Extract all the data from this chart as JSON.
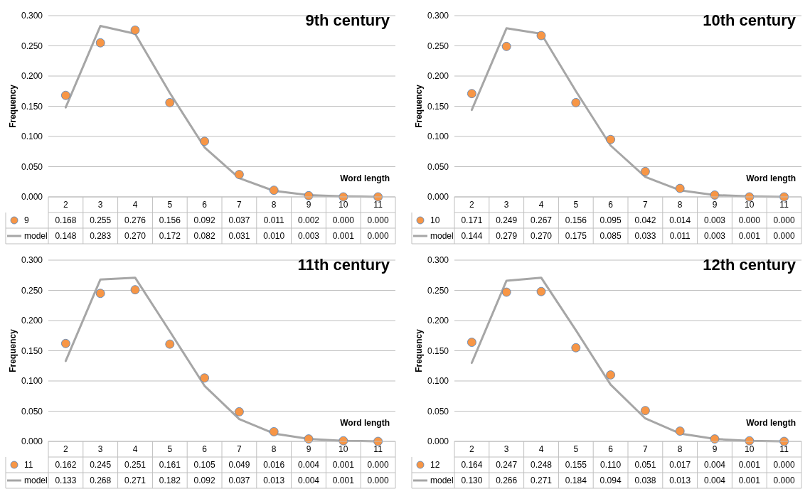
{
  "chart_data": [
    {
      "type": "scatter",
      "title": "9th century",
      "xlabel": "Word length",
      "ylabel": "Frequency",
      "categories": [
        "2",
        "3",
        "4",
        "5",
        "6",
        "7",
        "8",
        "9",
        "10",
        "11"
      ],
      "ylim": [
        0,
        0.3
      ],
      "yticks": [
        {
          "value": 0,
          "label": "0.000"
        },
        {
          "value": 0.05,
          "label": "0.050"
        },
        {
          "value": 0.1,
          "label": "0.100"
        },
        {
          "value": 0.15,
          "label": "0.150"
        },
        {
          "value": 0.2,
          "label": "0.200"
        },
        {
          "value": 0.25,
          "label": "0.250"
        },
        {
          "value": 0.3,
          "label": "0.300"
        }
      ],
      "grid": "y",
      "legend": "bottom",
      "series": [
        {
          "name": "9",
          "marker": "circle",
          "color": "#f79646",
          "values": [
            0.168,
            0.255,
            0.276,
            0.156,
            0.092,
            0.037,
            0.011,
            0.002,
            0.0,
            0.0
          ],
          "value_labels": [
            "0.168",
            "0.255",
            "0.276",
            "0.156",
            "0.092",
            "0.037",
            "0.011",
            "0.002",
            "0.000",
            "0.000"
          ]
        },
        {
          "name": "model",
          "type": "line",
          "marker": "none",
          "color": "#a6a6a6",
          "values": [
            0.148,
            0.283,
            0.27,
            0.172,
            0.082,
            0.031,
            0.01,
            0.003,
            0.001,
            0.0
          ],
          "value_labels": [
            "0.148",
            "0.283",
            "0.270",
            "0.172",
            "0.082",
            "0.031",
            "0.010",
            "0.003",
            "0.001",
            "0.000"
          ]
        }
      ]
    },
    {
      "type": "scatter",
      "title": "10th century",
      "xlabel": "Word length",
      "ylabel": "Frequency",
      "categories": [
        "2",
        "3",
        "4",
        "5",
        "6",
        "7",
        "8",
        "9",
        "10",
        "11"
      ],
      "ylim": [
        0,
        0.3
      ],
      "yticks": [
        {
          "value": 0,
          "label": "0.000"
        },
        {
          "value": 0.05,
          "label": "0.050"
        },
        {
          "value": 0.1,
          "label": "0.100"
        },
        {
          "value": 0.15,
          "label": "0.150"
        },
        {
          "value": 0.2,
          "label": "0.200"
        },
        {
          "value": 0.25,
          "label": "0.250"
        },
        {
          "value": 0.3,
          "label": "0.300"
        }
      ],
      "grid": "y",
      "legend": "bottom",
      "series": [
        {
          "name": "10",
          "marker": "circle",
          "color": "#f79646",
          "values": [
            0.171,
            0.249,
            0.267,
            0.156,
            0.095,
            0.042,
            0.014,
            0.003,
            0.0,
            0.0
          ],
          "value_labels": [
            "0.171",
            "0.249",
            "0.267",
            "0.156",
            "0.095",
            "0.042",
            "0.014",
            "0.003",
            "0.000",
            "0.000"
          ]
        },
        {
          "name": "model",
          "type": "line",
          "marker": "none",
          "color": "#a6a6a6",
          "values": [
            0.144,
            0.279,
            0.27,
            0.175,
            0.085,
            0.033,
            0.011,
            0.003,
            0.001,
            0.0
          ],
          "value_labels": [
            "0.144",
            "0.279",
            "0.270",
            "0.175",
            "0.085",
            "0.033",
            "0.011",
            "0.003",
            "0.001",
            "0.000"
          ]
        }
      ]
    },
    {
      "type": "scatter",
      "title": "11th century",
      "xlabel": "Word length",
      "ylabel": "Frequency",
      "categories": [
        "2",
        "3",
        "4",
        "5",
        "6",
        "7",
        "8",
        "9",
        "10",
        "11"
      ],
      "ylim": [
        0,
        0.3
      ],
      "yticks": [
        {
          "value": 0,
          "label": "0.000"
        },
        {
          "value": 0.05,
          "label": "0.050"
        },
        {
          "value": 0.1,
          "label": "0.100"
        },
        {
          "value": 0.15,
          "label": "0.150"
        },
        {
          "value": 0.2,
          "label": "0.200"
        },
        {
          "value": 0.25,
          "label": "0.250"
        },
        {
          "value": 0.3,
          "label": "0.300"
        }
      ],
      "grid": "y",
      "legend": "bottom",
      "series": [
        {
          "name": "11",
          "marker": "circle",
          "color": "#f79646",
          "values": [
            0.162,
            0.245,
            0.251,
            0.161,
            0.105,
            0.049,
            0.016,
            0.004,
            0.001,
            0.0
          ],
          "value_labels": [
            "0.162",
            "0.245",
            "0.251",
            "0.161",
            "0.105",
            "0.049",
            "0.016",
            "0.004",
            "0.001",
            "0.000"
          ]
        },
        {
          "name": "model",
          "type": "line",
          "marker": "none",
          "color": "#a6a6a6",
          "values": [
            0.133,
            0.268,
            0.271,
            0.182,
            0.092,
            0.037,
            0.013,
            0.004,
            0.001,
            0.0
          ],
          "value_labels": [
            "0.133",
            "0.268",
            "0.271",
            "0.182",
            "0.092",
            "0.037",
            "0.013",
            "0.004",
            "0.001",
            "0.000"
          ]
        }
      ]
    },
    {
      "type": "scatter",
      "title": "12th century",
      "xlabel": "Word length",
      "ylabel": "Frequency",
      "categories": [
        "2",
        "3",
        "4",
        "5",
        "6",
        "7",
        "8",
        "9",
        "10",
        "11"
      ],
      "ylim": [
        0,
        0.3
      ],
      "yticks": [
        {
          "value": 0,
          "label": "0.000"
        },
        {
          "value": 0.05,
          "label": "0.050"
        },
        {
          "value": 0.1,
          "label": "0.100"
        },
        {
          "value": 0.15,
          "label": "0.150"
        },
        {
          "value": 0.2,
          "label": "0.200"
        },
        {
          "value": 0.25,
          "label": "0.250"
        },
        {
          "value": 0.3,
          "label": "0.300"
        }
      ],
      "grid": "y",
      "legend": "bottom",
      "series": [
        {
          "name": "12",
          "marker": "circle",
          "color": "#f79646",
          "values": [
            0.164,
            0.247,
            0.248,
            0.155,
            0.11,
            0.051,
            0.017,
            0.004,
            0.001,
            0.0
          ],
          "value_labels": [
            "0.164",
            "0.247",
            "0.248",
            "0.155",
            "0.110",
            "0.051",
            "0.017",
            "0.004",
            "0.001",
            "0.000"
          ]
        },
        {
          "name": "model",
          "type": "line",
          "marker": "none",
          "color": "#a6a6a6",
          "values": [
            0.13,
            0.266,
            0.271,
            0.184,
            0.094,
            0.038,
            0.013,
            0.004,
            0.001,
            0.0
          ],
          "value_labels": [
            "0.130",
            "0.266",
            "0.271",
            "0.184",
            "0.094",
            "0.038",
            "0.013",
            "0.004",
            "0.001",
            "0.000"
          ]
        }
      ]
    }
  ]
}
